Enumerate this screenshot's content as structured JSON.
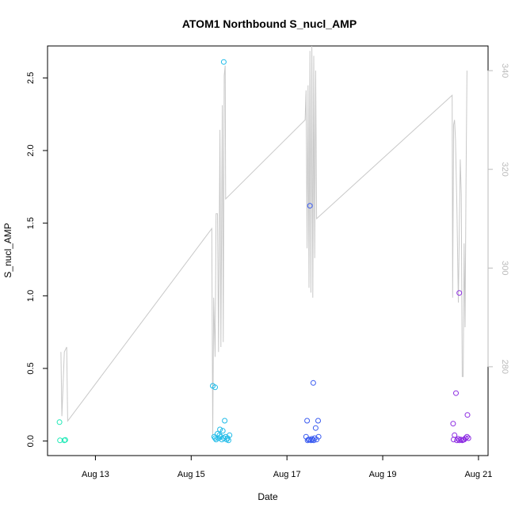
{
  "chart_data": {
    "type": "scatter",
    "title": "ATOM1 Northbound S_nucl_AMP",
    "xlabel": "Date",
    "ylabel": "S_nucl_AMP",
    "x_unit": "days (August 2023 style day-of-month, fractional)",
    "xlim": [
      12.0,
      21.2
    ],
    "ylim": [
      -0.1,
      2.72
    ],
    "y2lim": [
      262.0,
      345.0
    ],
    "grid": false,
    "legend": "none",
    "x_ticks": [
      {
        "value": 13,
        "label": "Aug 13"
      },
      {
        "value": 15,
        "label": "Aug 15"
      },
      {
        "value": 17,
        "label": "Aug 17"
      },
      {
        "value": 19,
        "label": "Aug 19"
      },
      {
        "value": 21,
        "label": "Aug 21"
      }
    ],
    "y_ticks": [
      {
        "value": 0.0,
        "label": "0.0"
      },
      {
        "value": 0.5,
        "label": "0.5"
      },
      {
        "value": 1.0,
        "label": "1.0"
      },
      {
        "value": 1.5,
        "label": "1.5"
      },
      {
        "value": 2.0,
        "label": "2.0"
      },
      {
        "value": 2.5,
        "label": "2.5"
      }
    ],
    "y2_ticks": [
      {
        "value": 280,
        "label": "280"
      },
      {
        "value": 300,
        "label": "300"
      },
      {
        "value": 320,
        "label": "320"
      },
      {
        "value": 340,
        "label": "340"
      }
    ],
    "series": [
      {
        "color": "#1de9b6",
        "points": [
          [
            12.25,
            0.13
          ],
          [
            12.26,
            0.005
          ],
          [
            12.35,
            0.005
          ],
          [
            12.37,
            0.008
          ]
        ]
      },
      {
        "color": "#1ebbe8",
        "points": [
          [
            15.45,
            0.38
          ],
          [
            15.5,
            0.37
          ],
          [
            15.68,
            2.61
          ],
          [
            15.55,
            0.05
          ],
          [
            15.6,
            0.08
          ],
          [
            15.62,
            0.03
          ],
          [
            15.66,
            0.07
          ],
          [
            15.7,
            0.14
          ],
          [
            15.5,
            0.02
          ],
          [
            15.52,
            0.01
          ],
          [
            15.57,
            0.02
          ],
          [
            15.59,
            0.04
          ],
          [
            15.64,
            0.01
          ],
          [
            15.68,
            0.02
          ],
          [
            15.72,
            0.03
          ],
          [
            15.74,
            0.01
          ],
          [
            15.76,
            0.02
          ],
          [
            15.78,
            0.005
          ],
          [
            15.8,
            0.04
          ],
          [
            15.48,
            0.03
          ]
        ]
      },
      {
        "color": "#3a5bf0",
        "points": [
          [
            17.48,
            1.62
          ],
          [
            17.55,
            0.4
          ],
          [
            17.42,
            0.14
          ],
          [
            17.65,
            0.14
          ],
          [
            17.6,
            0.09
          ],
          [
            17.4,
            0.03
          ],
          [
            17.45,
            0.01
          ],
          [
            17.5,
            0.005
          ],
          [
            17.52,
            0.015
          ],
          [
            17.56,
            0.005
          ],
          [
            17.58,
            0.02
          ],
          [
            17.62,
            0.01
          ],
          [
            17.66,
            0.03
          ],
          [
            17.43,
            0.005
          ],
          [
            17.47,
            0.01
          ],
          [
            17.53,
            0.008
          ]
        ]
      },
      {
        "color": "#8c2be2",
        "points": [
          [
            20.6,
            1.02
          ],
          [
            20.53,
            0.33
          ],
          [
            20.77,
            0.18
          ],
          [
            20.47,
            0.12
          ],
          [
            20.5,
            0.04
          ],
          [
            20.48,
            0.01
          ],
          [
            20.55,
            0.005
          ],
          [
            20.6,
            0.005
          ],
          [
            20.63,
            0.01
          ],
          [
            20.66,
            0.005
          ],
          [
            20.7,
            0.01
          ],
          [
            20.73,
            0.02
          ],
          [
            20.76,
            0.03
          ],
          [
            20.79,
            0.02
          ],
          [
            20.68,
            0.008
          ],
          [
            20.58,
            0.015
          ]
        ]
      }
    ],
    "y2_line": {
      "color": "#c8c8c8",
      "points": [
        [
          12.28,
          283
        ],
        [
          12.3,
          270
        ],
        [
          12.35,
          283
        ],
        [
          12.4,
          284
        ],
        [
          12.42,
          269
        ],
        [
          15.43,
          308
        ],
        [
          15.45,
          266
        ],
        [
          15.47,
          294
        ],
        [
          15.5,
          282
        ],
        [
          15.52,
          311
        ],
        [
          15.55,
          311
        ],
        [
          15.57,
          283
        ],
        [
          15.6,
          328
        ],
        [
          15.62,
          284
        ],
        [
          15.65,
          333
        ],
        [
          15.67,
          285
        ],
        [
          15.69,
          339
        ],
        [
          15.71,
          341
        ],
        [
          15.72,
          314
        ],
        [
          17.38,
          330
        ],
        [
          17.4,
          336
        ],
        [
          17.42,
          304
        ],
        [
          17.44,
          337
        ],
        [
          17.46,
          296
        ],
        [
          17.48,
          344
        ],
        [
          17.5,
          295
        ],
        [
          17.52,
          345
        ],
        [
          17.54,
          294
        ],
        [
          17.56,
          343
        ],
        [
          17.58,
          302
        ],
        [
          17.6,
          340
        ],
        [
          17.62,
          310
        ],
        [
          20.45,
          335
        ],
        [
          20.46,
          294
        ],
        [
          20.48,
          329
        ],
        [
          20.5,
          330
        ],
        [
          20.52,
          326
        ],
        [
          20.55,
          312
        ],
        [
          20.58,
          293
        ],
        [
          20.62,
          322
        ],
        [
          20.64,
          315
        ],
        [
          20.66,
          278
        ],
        [
          20.68,
          278
        ],
        [
          20.7,
          305
        ],
        [
          20.72,
          288
        ],
        [
          20.74,
          318
        ],
        [
          20.76,
          340
        ]
      ]
    }
  }
}
